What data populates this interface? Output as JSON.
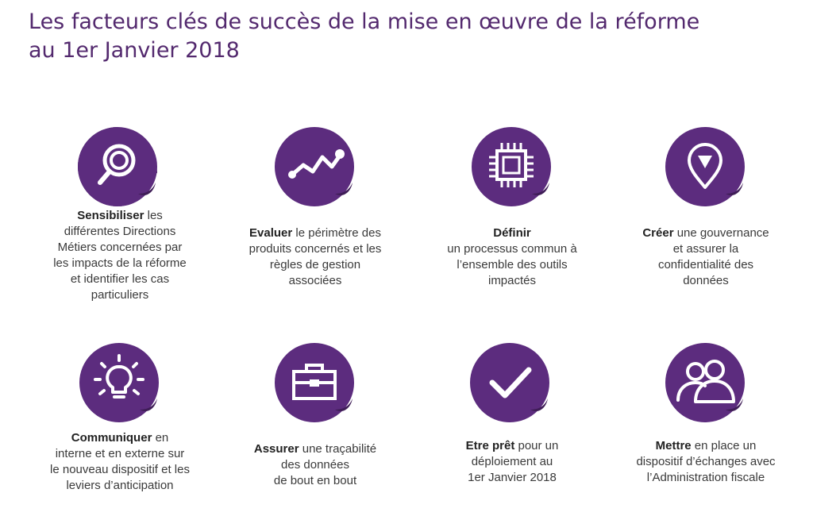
{
  "title": {
    "line1": "Les facteurs clés de succès de la mise en œuvre de la réforme",
    "line2": "au 1er Janvier 2018"
  },
  "theme": {
    "accent": "#5c2c7e",
    "accent_dark": "#3f1d57"
  },
  "cards": [
    {
      "icon": "magnifier-icon",
      "lines": [
        {
          "bold": "Sensibiliser",
          "rest": " les"
        },
        {
          "bold": "",
          "rest": "différentes Directions"
        },
        {
          "bold": "",
          "rest": "Métiers concernées par"
        },
        {
          "bold": "",
          "rest": "les impacts de la réforme"
        },
        {
          "bold": "",
          "rest": "et identifier les cas"
        },
        {
          "bold": "",
          "rest": "particuliers"
        }
      ]
    },
    {
      "icon": "trend-line-icon",
      "lines": [
        {
          "bold": "Evaluer",
          "rest": " le périmètre des"
        },
        {
          "bold": "",
          "rest": "produits concernés et les"
        },
        {
          "bold": "",
          "rest": "règles de gestion"
        },
        {
          "bold": "",
          "rest": "associées"
        }
      ]
    },
    {
      "icon": "chip-icon",
      "lines": [
        {
          "bold": "Définir",
          "rest": ""
        },
        {
          "bold": "",
          "rest": "un processus commun à"
        },
        {
          "bold": "",
          "rest": "l’ensemble des outils"
        },
        {
          "bold": "",
          "rest": "impactés"
        }
      ]
    },
    {
      "icon": "location-pin-icon",
      "lines": [
        {
          "bold": "Créer",
          "rest": " une gouvernance"
        },
        {
          "bold": "",
          "rest": "et assurer la"
        },
        {
          "bold": "",
          "rest": "confidentialité des"
        },
        {
          "bold": "",
          "rest": "données"
        }
      ]
    },
    {
      "icon": "lightbulb-icon",
      "lines": [
        {
          "bold": "Communiquer",
          "rest": " en"
        },
        {
          "bold": "",
          "rest": "interne et en externe sur"
        },
        {
          "bold": "",
          "rest": "le nouveau dispositif et les"
        },
        {
          "bold": "",
          "rest": "leviers d’anticipation"
        }
      ]
    },
    {
      "icon": "briefcase-icon",
      "lines": [
        {
          "bold": "Assurer",
          "rest": " une traçabilité"
        },
        {
          "bold": "",
          "rest": "des données"
        },
        {
          "bold": "",
          "rest": "de bout en bout"
        }
      ]
    },
    {
      "icon": "checkmark-icon",
      "lines": [
        {
          "bold": "Etre prêt",
          "rest": " pour un"
        },
        {
          "bold": "",
          "rest": "déploiement au"
        },
        {
          "bold": "",
          "rest": "1er Janvier 2018"
        }
      ]
    },
    {
      "icon": "people-icon",
      "lines": [
        {
          "bold": "Mettre",
          "rest": " en place un"
        },
        {
          "bold": "",
          "rest": "dispositif d’échanges  avec"
        },
        {
          "bold": "",
          "rest": "l’Administration fiscale"
        }
      ]
    }
  ]
}
